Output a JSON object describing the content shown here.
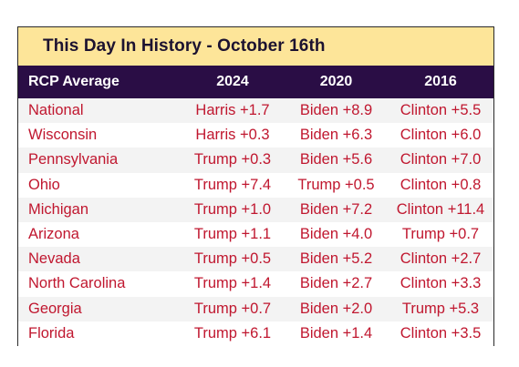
{
  "title": "This Day In History - October 16th",
  "headers": [
    "RCP Average",
    "2024",
    "2020",
    "2016"
  ],
  "rows": [
    [
      "National",
      "Harris +1.7",
      "Biden +8.9",
      "Clinton +5.5"
    ],
    [
      "Wisconsin",
      "Harris +0.3",
      "Biden +6.3",
      "Clinton +6.0"
    ],
    [
      "Pennsylvania",
      "Trump +0.3",
      "Biden +5.6",
      "Clinton +7.0"
    ],
    [
      "Ohio",
      "Trump +7.4",
      "Trump +0.5",
      "Clinton +0.8"
    ],
    [
      "Michigan",
      "Trump +1.0",
      "Biden +7.2",
      "Clinton +11.4"
    ],
    [
      "Arizona",
      "Trump +1.1",
      "Biden +4.0",
      "Trump +0.7"
    ],
    [
      "Nevada",
      "Trump +0.5",
      "Biden +5.2",
      "Clinton +2.7"
    ],
    [
      "North Carolina",
      "Trump +1.4",
      "Biden +2.7",
      "Clinton +3.3"
    ],
    [
      "Georgia",
      "Trump +0.7",
      "Biden +2.0",
      "Trump +5.3"
    ],
    [
      "Florida",
      "Trump +6.1",
      "Biden +1.4",
      "Clinton +3.5"
    ]
  ],
  "colors": {
    "title_background": "#fde599",
    "header_background": "#2a0d45",
    "header_text": "#ffffff",
    "cell_text": "#c0172f",
    "stripe": "#f3f3f3"
  }
}
